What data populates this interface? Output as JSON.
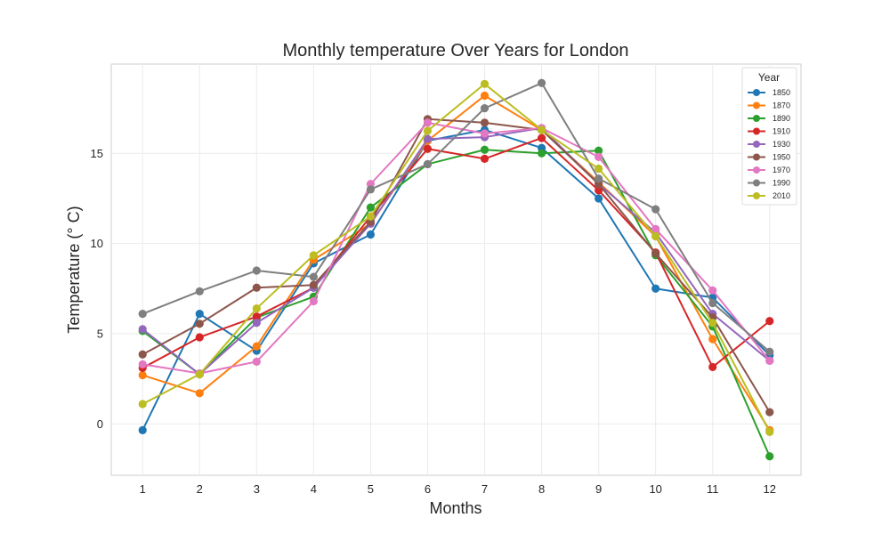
{
  "chart_data": {
    "type": "line",
    "title": "Monthly temperature Over Years for London",
    "xlabel": "Months",
    "ylabel": "Temperature (° C)",
    "x": [
      1,
      2,
      3,
      4,
      5,
      6,
      7,
      8,
      9,
      10,
      11,
      12
    ],
    "xlim": [
      0.45,
      12.55
    ],
    "ylim": [
      -2.85,
      19.95
    ],
    "yticks": [
      0,
      5,
      10,
      15
    ],
    "grid": true,
    "legend": {
      "title": "Year",
      "placement": "top-right"
    },
    "series": [
      {
        "name": "1850",
        "color": "#1f77b4",
        "values": [
          -0.35,
          6.1,
          4.05,
          8.9,
          10.5,
          15.7,
          16.3,
          15.3,
          12.5,
          7.5,
          7.0,
          3.8
        ]
      },
      {
        "name": "1870",
        "color": "#ff7f0e",
        "values": [
          2.7,
          1.7,
          4.3,
          9.1,
          11.1,
          15.7,
          18.2,
          16.3,
          13.4,
          10.4,
          4.7,
          -0.35
        ]
      },
      {
        "name": "1890",
        "color": "#2ca02c",
        "values": [
          5.15,
          2.75,
          5.9,
          7.05,
          12.0,
          14.4,
          15.2,
          15.0,
          15.15,
          9.35,
          5.4,
          -1.8
        ]
      },
      {
        "name": "1910",
        "color": "#d62728",
        "values": [
          3.1,
          4.8,
          5.95,
          7.55,
          11.5,
          15.25,
          14.7,
          15.85,
          12.95,
          9.5,
          3.15,
          5.7
        ]
      },
      {
        "name": "1930",
        "color": "#9467bd",
        "values": [
          5.25,
          2.75,
          5.6,
          7.55,
          11.1,
          15.8,
          15.9,
          16.4,
          13.3,
          10.6,
          6.1,
          3.5
        ]
      },
      {
        "name": "1950",
        "color": "#8c564b",
        "values": [
          3.85,
          5.55,
          7.55,
          7.7,
          11.2,
          16.9,
          16.7,
          16.3,
          13.3,
          9.45,
          5.9,
          0.65
        ]
      },
      {
        "name": "1970",
        "color": "#e377c2",
        "values": [
          3.3,
          2.8,
          3.45,
          6.8,
          13.3,
          16.7,
          16.1,
          16.4,
          14.8,
          10.8,
          7.4,
          3.5
        ]
      },
      {
        "name": "1990",
        "color": "#7f7f7f",
        "values": [
          6.1,
          7.35,
          8.5,
          8.15,
          13.0,
          14.4,
          17.5,
          18.9,
          13.6,
          11.9,
          6.7,
          4.0
        ]
      },
      {
        "name": "2010",
        "color": "#bcbd22",
        "values": [
          1.1,
          2.75,
          6.4,
          9.35,
          11.5,
          16.25,
          18.85,
          16.3,
          14.15,
          10.4,
          5.6,
          -0.45
        ]
      }
    ]
  }
}
